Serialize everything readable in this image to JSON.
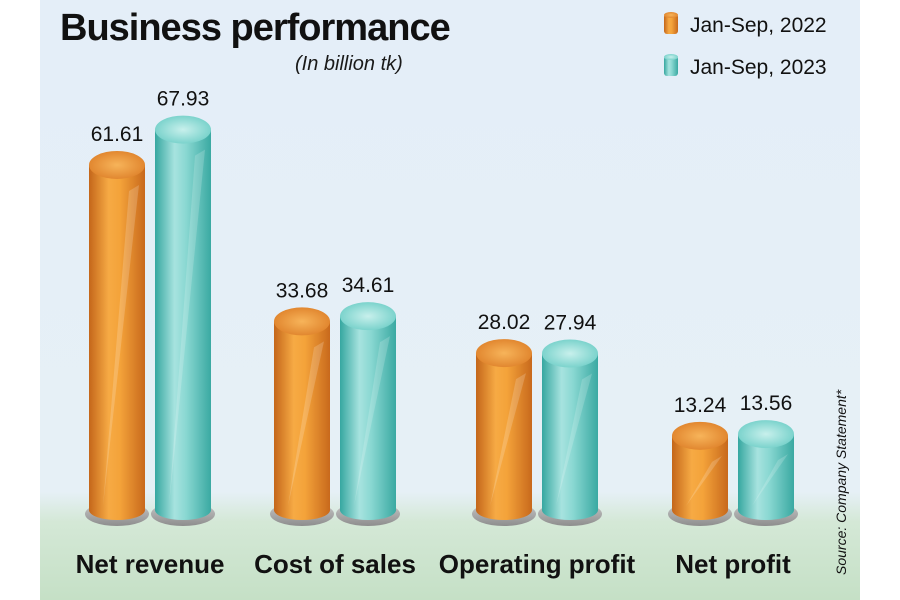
{
  "chart_data": {
    "type": "bar",
    "title": "Business performance",
    "subtitle": "(In billion tk)",
    "categories": [
      "Net revenue",
      "Cost of sales",
      "Operating profit",
      "Net profit"
    ],
    "series": [
      {
        "name": "Jan-Sep, 2022",
        "values": [
          61.61,
          33.68,
          28.02,
          13.24
        ],
        "color": "#e8902c"
      },
      {
        "name": "Jan-Sep, 2023",
        "values": [
          67.93,
          34.61,
          27.94,
          13.56
        ],
        "color": "#5cc6c0"
      }
    ],
    "value_labels": [
      [
        "61.61",
        "33.68",
        "28.02",
        "13.24"
      ],
      [
        "67.93",
        "34.61",
        "27.94",
        "13.56"
      ]
    ],
    "ylim": [
      0,
      70
    ],
    "xlabel": "",
    "ylabel": "",
    "legend_position": "top-right",
    "source": "Source: Company Statement*"
  },
  "colors": {
    "background_top": "#e4eef8",
    "background_bottom": "#cfe6cf",
    "orange": "#e8902c",
    "teal": "#5cc6c0"
  }
}
